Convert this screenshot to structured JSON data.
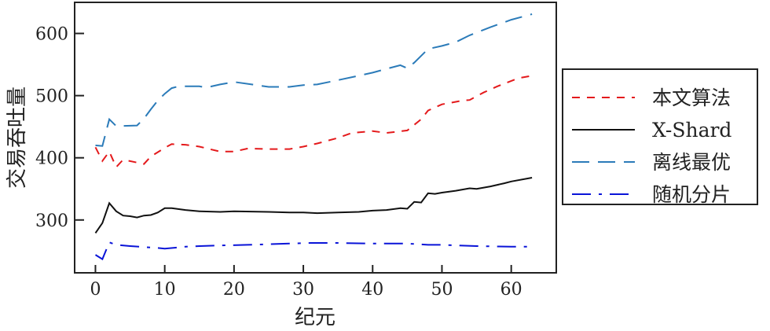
{
  "chart_data": {
    "type": "line",
    "title": "",
    "xlabel": "纪元",
    "ylabel": "交易吞吐量",
    "xlim": [
      -3,
      66.5
    ],
    "ylim": [
      215,
      650
    ],
    "xticks": [
      0,
      10,
      20,
      30,
      40,
      50,
      60
    ],
    "yticks": [
      300,
      400,
      500,
      600
    ],
    "grid": false,
    "legend_position": "right-outside",
    "series": [
      {
        "name": "本文算法",
        "color": "#e41a1c",
        "dash": "10,9",
        "x": [
          0,
          1,
          2,
          3,
          4,
          7,
          8,
          10,
          11,
          13,
          15,
          18,
          20,
          22,
          25,
          28,
          30,
          32,
          35,
          37,
          40,
          42,
          45,
          47,
          48,
          50,
          53,
          54,
          56,
          58,
          61,
          63
        ],
        "y": [
          417,
          395,
          410,
          385,
          397,
          390,
          402,
          416,
          422,
          421,
          418,
          410,
          410,
          415,
          414,
          414,
          418,
          423,
          432,
          440,
          443,
          440,
          444,
          462,
          476,
          486,
          492,
          493,
          505,
          515,
          528,
          532
        ]
      },
      {
        "name": "X-Shard",
        "color": "#111111",
        "dash": "",
        "x": [
          0,
          1,
          2,
          3,
          4,
          5,
          6,
          7,
          8,
          9,
          10,
          11,
          13,
          15,
          18,
          20,
          25,
          28,
          30,
          32,
          35,
          38,
          40,
          42,
          44,
          45,
          46,
          47,
          48,
          49,
          50,
          52,
          54,
          55,
          57,
          59,
          60,
          63
        ],
        "y": [
          279,
          295,
          327,
          314,
          307,
          306,
          304,
          307,
          308,
          312,
          319,
          319,
          316,
          314,
          313,
          314,
          313,
          312,
          312,
          311,
          312,
          313,
          315,
          316,
          319,
          318,
          329,
          328,
          343,
          342,
          344,
          347,
          351,
          350,
          354,
          359,
          362,
          368
        ]
      },
      {
        "name": "离线最优",
        "color": "#2b7bb9",
        "dash": "22,11",
        "x": [
          0,
          1,
          2,
          3,
          6,
          7,
          8,
          9,
          10,
          11,
          12,
          15,
          16,
          18,
          20,
          25,
          28,
          30,
          32,
          35,
          38,
          40,
          42,
          44,
          45,
          46,
          48,
          50,
          52,
          54,
          57,
          60,
          63
        ],
        "y": [
          420,
          419,
          462,
          451,
          452,
          463,
          478,
          492,
          503,
          512,
          515,
          515,
          513,
          518,
          522,
          514,
          514,
          517,
          518,
          525,
          532,
          537,
          543,
          549,
          544,
          553,
          575,
          580,
          586,
          597,
          610,
          622,
          631
        ]
      },
      {
        "name": "随机分片",
        "color": "#0a14d8",
        "dash": "24,10,4,10",
        "x": [
          0,
          1,
          2,
          3,
          5,
          9,
          10,
          13,
          15,
          18,
          22,
          25,
          28,
          31,
          35,
          40,
          45,
          48,
          50,
          55,
          60,
          63
        ],
        "y": [
          244,
          237,
          264,
          260,
          258,
          255,
          254,
          257,
          258,
          259,
          260,
          261,
          262,
          263,
          263,
          262,
          262,
          260,
          260,
          258,
          257,
          257
        ]
      }
    ]
  }
}
